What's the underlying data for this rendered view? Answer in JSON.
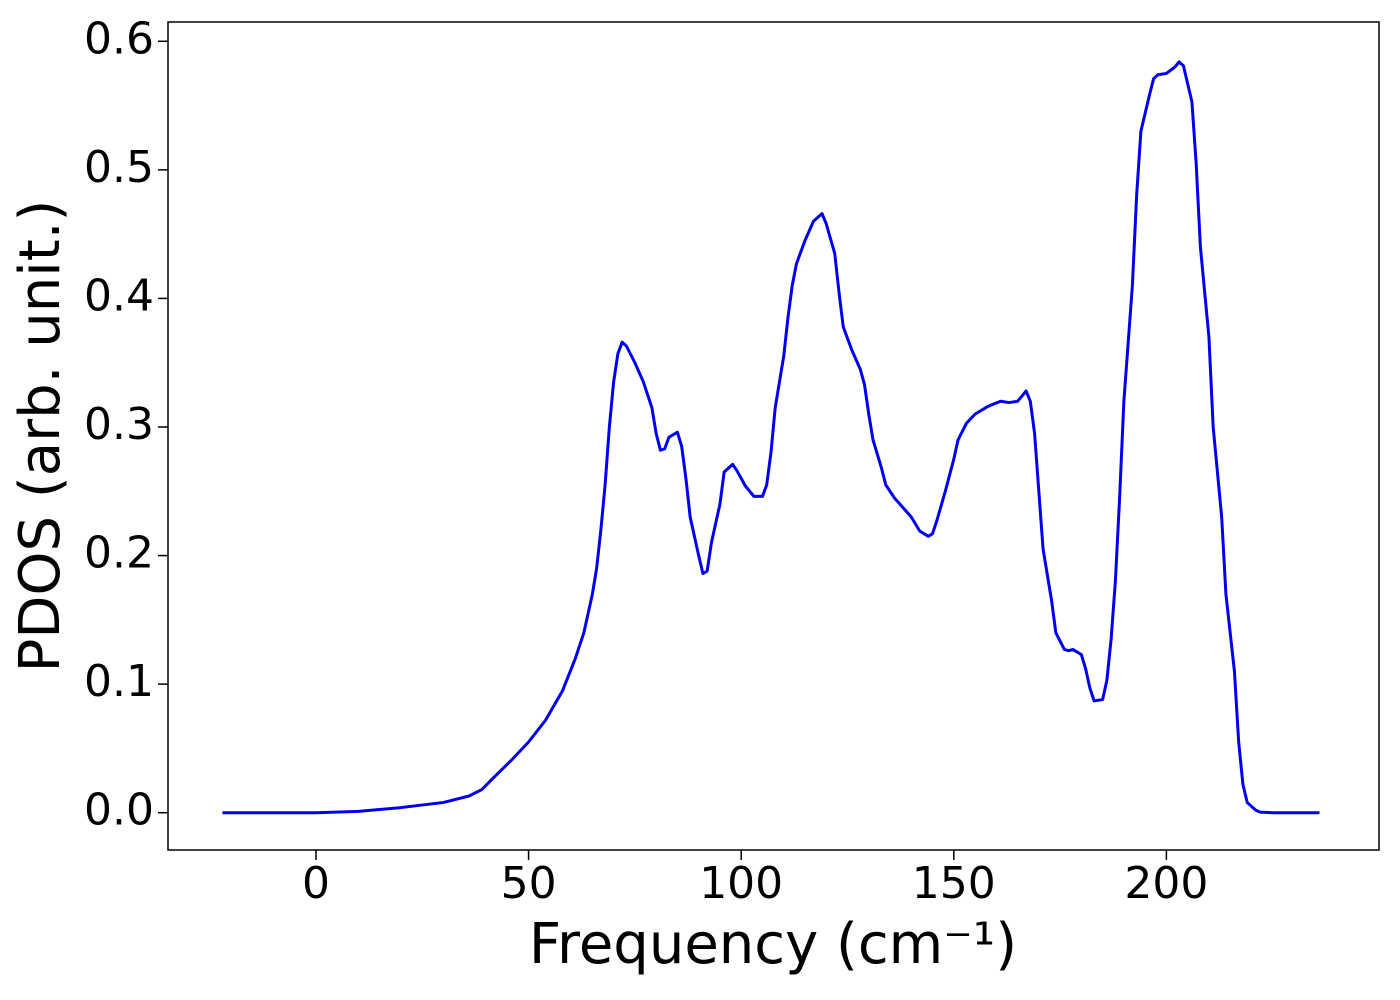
{
  "chart_data": {
    "type": "line",
    "xlabel": "Frequency (cm⁻¹)",
    "ylabel": "PDOS (arb. unit.)",
    "x": [
      -22,
      0,
      10,
      20,
      30,
      36,
      39,
      42,
      46,
      50,
      54,
      58,
      61,
      63,
      65,
      66,
      67,
      68,
      69,
      70,
      71,
      72,
      73,
      75,
      77,
      79,
      80,
      81,
      82,
      83,
      85,
      86,
      87,
      88,
      90,
      91,
      92,
      93,
      95,
      96,
      98,
      99,
      101,
      103,
      105,
      106,
      107,
      108,
      110,
      111,
      112,
      113,
      115,
      117,
      119,
      120,
      122,
      123,
      124,
      126,
      128,
      129,
      130,
      131,
      133,
      134,
      136,
      140,
      142,
      144,
      145,
      146,
      148,
      150,
      151,
      153,
      155,
      158,
      161,
      163,
      165,
      167,
      168,
      169,
      170,
      171,
      173,
      174,
      176,
      177,
      178,
      180,
      181,
      182,
      183,
      185,
      186,
      187,
      188,
      189,
      190,
      192,
      193,
      194,
      196,
      197,
      198,
      200,
      202,
      203,
      204,
      206,
      207,
      208,
      210,
      211,
      213,
      214,
      216,
      217,
      218,
      219,
      221,
      222,
      225,
      236
    ],
    "series": [
      {
        "name": "PDOS",
        "color": "#0000ee",
        "values": [
          0,
          0,
          0.001,
          0.004,
          0.008,
          0.013,
          0.018,
          0.028,
          0.041,
          0.055,
          0.072,
          0.095,
          0.12,
          0.14,
          0.17,
          0.19,
          0.22,
          0.255,
          0.3,
          0.335,
          0.357,
          0.366,
          0.363,
          0.35,
          0.335,
          0.315,
          0.295,
          0.282,
          0.283,
          0.292,
          0.296,
          0.285,
          0.26,
          0.23,
          0.2,
          0.186,
          0.188,
          0.21,
          0.24,
          0.265,
          0.271,
          0.266,
          0.254,
          0.246,
          0.246,
          0.255,
          0.28,
          0.315,
          0.355,
          0.385,
          0.41,
          0.427,
          0.445,
          0.46,
          0.466,
          0.458,
          0.435,
          0.405,
          0.378,
          0.36,
          0.345,
          0.333,
          0.31,
          0.29,
          0.268,
          0.255,
          0.245,
          0.23,
          0.219,
          0.215,
          0.217,
          0.227,
          0.25,
          0.275,
          0.29,
          0.303,
          0.31,
          0.316,
          0.32,
          0.319,
          0.32,
          0.328,
          0.32,
          0.295,
          0.25,
          0.205,
          0.165,
          0.14,
          0.127,
          0.126,
          0.127,
          0.123,
          0.112,
          0.097,
          0.087,
          0.088,
          0.103,
          0.135,
          0.18,
          0.245,
          0.32,
          0.41,
          0.48,
          0.53,
          0.558,
          0.571,
          0.574,
          0.575,
          0.58,
          0.584,
          0.581,
          0.553,
          0.505,
          0.44,
          0.37,
          0.3,
          0.23,
          0.17,
          0.11,
          0.055,
          0.022,
          0.008,
          0.002,
          0.0005,
          0,
          0
        ]
      }
    ],
    "xlim": [
      -34.8,
      250
    ],
    "ylim": [
      -0.029,
      0.615
    ],
    "xticks": [
      0,
      50,
      100,
      150,
      200
    ],
    "yticks": [
      {
        "value": 0,
        "label": "0.0"
      },
      0.1,
      0.2,
      0.3,
      0.4,
      0.5,
      0.6
    ]
  }
}
